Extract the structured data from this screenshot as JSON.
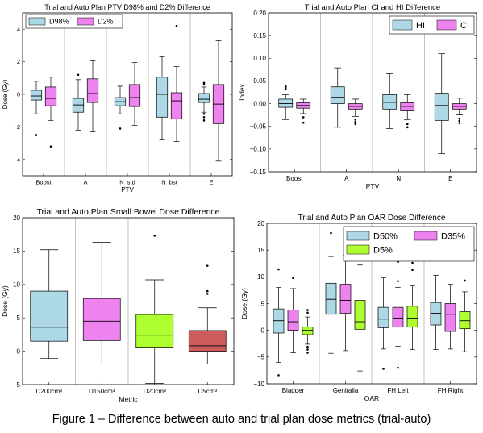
{
  "figure_caption": "Figure 1 – Difference between auto and trial plan dose metrics (trial-auto)",
  "colors": {
    "light_blue": "#add8e6",
    "violet": "#ee82ee",
    "green_yellow": "#adff2f",
    "indian_red": "#cd5c5c"
  },
  "chart_data": [
    {
      "type": "box",
      "title": "Trial and Auto Plan PTV D98% and D2% Difference",
      "xlabel": "PTV",
      "ylabel": "Dose (Gy)",
      "ylim": [
        -5,
        5
      ],
      "yticks": [
        -4,
        -2,
        0,
        2,
        4
      ],
      "yticklabels": [
        "-4",
        "-2",
        "0",
        "2",
        "4"
      ],
      "grid": false,
      "legend_position": "top-left",
      "legend_columns": 2,
      "categories": [
        "Boost",
        "A",
        "N_std",
        "N_bst",
        "E"
      ],
      "series": [
        {
          "name": "D98%",
          "color": "#add8e6",
          "boxes": [
            {
              "whislo": -1.2,
              "q1": -0.35,
              "med": -0.1,
              "q3": 0.25,
              "whishi": 0.8,
              "fliers": [
                -2.5
              ]
            },
            {
              "whislo": -2.2,
              "q1": -1.1,
              "med": -0.65,
              "q3": -0.25,
              "whishi": 0.9,
              "fliers": [
                1.2
              ]
            },
            {
              "whislo": -1.2,
              "q1": -0.7,
              "med": -0.45,
              "q3": -0.2,
              "whishi": 0.5,
              "fliers": [
                -2.1
              ]
            },
            {
              "whislo": -2.8,
              "q1": -1.4,
              "med": 0.0,
              "q3": 1.05,
              "whishi": 2.3,
              "fliers": []
            },
            {
              "whislo": -1.1,
              "q1": -0.5,
              "med": -0.3,
              "q3": 0.05,
              "whishi": 0.45,
              "fliers": [
                0.7,
                0.6,
                -1.2,
                -1.4,
                -1.6
              ]
            }
          ]
        },
        {
          "name": "D2%",
          "color": "#ee82ee",
          "boxes": [
            {
              "whislo": -1.6,
              "q1": -0.7,
              "med": -0.25,
              "q3": 0.45,
              "whishi": 1.05,
              "fliers": [
                -3.2
              ]
            },
            {
              "whislo": -2.3,
              "q1": -0.5,
              "med": 0.05,
              "q3": 0.95,
              "whishi": 2.05,
              "fliers": []
            },
            {
              "whislo": -1.9,
              "q1": -0.75,
              "med": -0.2,
              "q3": 0.6,
              "whishi": 1.95,
              "fliers": []
            },
            {
              "whislo": -2.9,
              "q1": -1.5,
              "med": -0.4,
              "q3": 0.1,
              "whishi": 1.7,
              "fliers": [
                4.2
              ]
            },
            {
              "whislo": -4.1,
              "q1": -1.8,
              "med": -0.6,
              "q3": 0.6,
              "whishi": 3.3,
              "fliers": []
            }
          ]
        }
      ]
    },
    {
      "type": "box",
      "title": "Trial and Auto Plan CI and HI Difference",
      "xlabel": "PTV",
      "ylabel": "Index",
      "ylim": [
        -0.15,
        0.2
      ],
      "yticks": [
        -0.15,
        -0.1,
        -0.05,
        0.0,
        0.05,
        0.1,
        0.15,
        0.2
      ],
      "yticklabels": [
        "−0.15",
        "−0.10",
        "−0.05",
        "0.00",
        "0.05",
        "0.10",
        "0.15",
        "0.20"
      ],
      "grid": false,
      "legend_position": "top-right",
      "legend_columns": 2,
      "categories": [
        "Boost",
        "A",
        "N",
        "E"
      ],
      "series": [
        {
          "name": "HI",
          "color": "#add8e6",
          "boxes": [
            {
              "whislo": -0.035,
              "q1": -0.008,
              "med": 0.0,
              "q3": 0.01,
              "whishi": 0.02,
              "fliers": [
                0.038,
                0.035,
                0.032
              ]
            },
            {
              "whislo": -0.052,
              "q1": 0.0,
              "med": 0.014,
              "q3": 0.037,
              "whishi": 0.079,
              "fliers": []
            },
            {
              "whislo": -0.055,
              "q1": -0.012,
              "med": 0.003,
              "q3": 0.02,
              "whishi": 0.066,
              "fliers": []
            },
            {
              "whislo": -0.11,
              "q1": -0.037,
              "med": -0.004,
              "q3": 0.023,
              "whishi": 0.11,
              "fliers": []
            }
          ]
        },
        {
          "name": "CI",
          "color": "#ee82ee",
          "boxes": [
            {
              "whislo": -0.022,
              "q1": -0.01,
              "med": -0.004,
              "q3": 0.002,
              "whishi": 0.01,
              "fliers": [
                -0.03,
                -0.042
              ]
            },
            {
              "whislo": -0.028,
              "q1": -0.012,
              "med": -0.006,
              "q3": 0.0,
              "whishi": 0.01,
              "fliers": [
                -0.035,
                -0.04,
                -0.045
              ]
            },
            {
              "whislo": -0.035,
              "q1": -0.016,
              "med": -0.006,
              "q3": 0.002,
              "whishi": 0.02,
              "fliers": [
                -0.045,
                -0.052
              ]
            },
            {
              "whislo": -0.025,
              "q1": -0.012,
              "med": -0.006,
              "q3": 0.0,
              "whishi": 0.012,
              "fliers": [
                -0.033,
                -0.038,
                -0.043
              ]
            }
          ]
        }
      ]
    },
    {
      "type": "box",
      "title": "Trial and Auto Plan Small Bowel Dose Difference",
      "xlabel": "Metric",
      "ylabel": "Dose (Gy)",
      "ylim": [
        -5,
        20
      ],
      "yticks": [
        -5,
        0,
        5,
        10,
        15,
        20
      ],
      "yticklabels": [
        "−5",
        "0",
        "5",
        "10",
        "15",
        "20"
      ],
      "grid": false,
      "categories": [
        "D200cm³",
        "D150cm³",
        "D20cm³",
        "D5cm³"
      ],
      "series": [
        {
          "color": "#add8e6",
          "boxes": [
            {
              "whislo": -1.1,
              "q1": 1.5,
              "med": 3.6,
              "q3": 9.0,
              "whishi": 15.2,
              "fliers": []
            }
          ]
        },
        {
          "color": "#ee82ee",
          "boxes": [
            null,
            {
              "whislo": -1.9,
              "q1": 1.6,
              "med": 4.5,
              "q3": 7.9,
              "whishi": 16.3,
              "fliers": []
            }
          ]
        },
        {
          "color": "#adff2f",
          "boxes": [
            null,
            null,
            {
              "whislo": -4.8,
              "q1": 0.6,
              "med": 2.4,
              "q3": 5.5,
              "whishi": 10.7,
              "fliers": [
                17.3
              ]
            }
          ]
        },
        {
          "color": "#cd5c5c",
          "boxes": [
            null,
            null,
            null,
            {
              "whislo": -1.9,
              "q1": 0.0,
              "med": 0.8,
              "q3": 3.1,
              "whishi": 6.5,
              "fliers": [
                12.8,
                9.0,
                8.6
              ]
            }
          ]
        }
      ]
    },
    {
      "type": "box",
      "title": "Trial and Auto Plan OAR Dose Difference",
      "xlabel": "OAR",
      "ylabel": "Dose (Gy)",
      "ylim": [
        -10,
        20
      ],
      "yticks": [
        -10,
        -5,
        0,
        5,
        10,
        15,
        20
      ],
      "yticklabels": [
        "−10",
        "−5",
        "0",
        "5",
        "10",
        "15",
        "20"
      ],
      "grid": false,
      "legend_position": "top-right",
      "legend_columns": 2,
      "categories": [
        "Bladder",
        "Genitalia",
        "FH Left",
        "FH Right"
      ],
      "series": [
        {
          "name": "D50%",
          "color": "#add8e6",
          "boxes": [
            {
              "whislo": -6.0,
              "q1": -0.5,
              "med": 1.8,
              "q3": 4.0,
              "whishi": 8.0,
              "fliers": [
                11.4,
                -8.4
              ]
            },
            {
              "whislo": -4.3,
              "q1": 3.0,
              "med": 5.8,
              "q3": 8.8,
              "whishi": 13.8,
              "fliers": [
                18.2
              ]
            },
            {
              "whislo": -3.5,
              "q1": 0.5,
              "med": 2.1,
              "q3": 4.3,
              "whishi": 9.8,
              "fliers": [
                -7.2
              ]
            },
            {
              "whislo": -3.6,
              "q1": 1.0,
              "med": 3.2,
              "q3": 5.2,
              "whishi": 10.3,
              "fliers": []
            }
          ]
        },
        {
          "name": "D35%",
          "color": "#ee82ee",
          "boxes": [
            {
              "whislo": -4.2,
              "q1": 0.0,
              "med": 1.6,
              "q3": 3.8,
              "whishi": 7.8,
              "fliers": [
                9.8
              ]
            },
            {
              "whislo": -3.8,
              "q1": 3.2,
              "med": 5.6,
              "q3": 8.6,
              "whishi": 14.0,
              "fliers": []
            },
            {
              "whislo": -3.0,
              "q1": 0.6,
              "med": 2.3,
              "q3": 4.3,
              "whishi": 8.0,
              "fliers": [
                12.8,
                9.2,
                -7.0
              ]
            },
            {
              "whislo": -3.5,
              "q1": -0.2,
              "med": 3.0,
              "q3": 5.0,
              "whishi": 8.6,
              "fliers": []
            }
          ]
        },
        {
          "name": "D5%",
          "color": "#adff2f",
          "boxes": [
            {
              "whislo": -2.6,
              "q1": -0.8,
              "med": 0.0,
              "q3": 0.6,
              "whishi": 2.5,
              "fliers": [
                3.8,
                3.3,
                -3.1,
                -3.6,
                -4.2
              ]
            },
            {
              "whislo": -7.6,
              "q1": 0.2,
              "med": 1.6,
              "q3": 5.6,
              "whishi": 12.2,
              "fliers": [
                14.0
              ]
            },
            {
              "whislo": -3.6,
              "q1": 0.6,
              "med": 2.3,
              "q3": 4.5,
              "whishi": 8.3,
              "fliers": [
                11.3,
                12.6
              ]
            },
            {
              "whislo": -4.0,
              "q1": 0.3,
              "med": 1.8,
              "q3": 3.5,
              "whishi": 7.2,
              "fliers": [
                9.3
              ]
            }
          ]
        }
      ]
    }
  ]
}
